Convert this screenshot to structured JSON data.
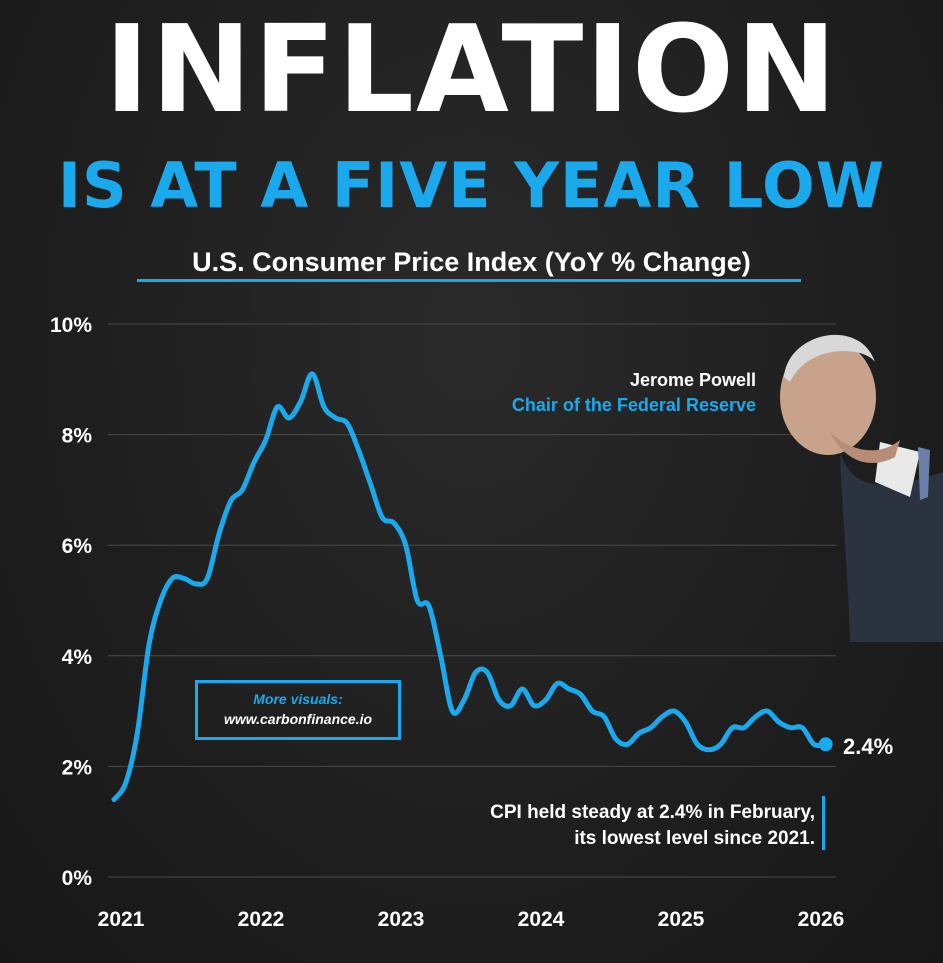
{
  "headline": {
    "line1": "INFLATION",
    "line2": "IS AT A FIVE YEAR LOW"
  },
  "speaker": {
    "name": "Jerome Powell",
    "role": "Chair of the Federal Reserve"
  },
  "promo": {
    "label": "More visuals:",
    "url": "www.carbonfinance.io"
  },
  "note": {
    "line1": "CPI held steady at 2.4% in February,",
    "line2": "its lowest level since 2021."
  },
  "colors": {
    "accent": "#1aa9ec",
    "background": "#1f1f1f",
    "text": "#ffffff",
    "grid": "#4a4a4a"
  },
  "chart_data": {
    "type": "line",
    "title": "U.S. Consumer Price Index (YoY % Change)",
    "xlabel": "",
    "ylabel": "",
    "x_ticks": [
      "2021",
      "2022",
      "2023",
      "2024",
      "2025",
      "2026"
    ],
    "y_ticks": [
      "0%",
      "2%",
      "4%",
      "6%",
      "8%",
      "10%"
    ],
    "ylim": [
      0,
      10
    ],
    "xlim": [
      "2021-01",
      "2026-02"
    ],
    "grid": true,
    "end_label": "2.4%",
    "series": [
      {
        "color": "#1aa9ec",
        "points": [
          {
            "x": "2021-01",
            "y": 1.4
          },
          {
            "x": "2021-02",
            "y": 1.7
          },
          {
            "x": "2021-03",
            "y": 2.6
          },
          {
            "x": "2021-04",
            "y": 4.2
          },
          {
            "x": "2021-05",
            "y": 5.0
          },
          {
            "x": "2021-06",
            "y": 5.4
          },
          {
            "x": "2021-07",
            "y": 5.4
          },
          {
            "x": "2021-08",
            "y": 5.3
          },
          {
            "x": "2021-09",
            "y": 5.4
          },
          {
            "x": "2021-10",
            "y": 6.2
          },
          {
            "x": "2021-11",
            "y": 6.8
          },
          {
            "x": "2021-12",
            "y": 7.0
          },
          {
            "x": "2022-01",
            "y": 7.5
          },
          {
            "x": "2022-02",
            "y": 7.9
          },
          {
            "x": "2022-03",
            "y": 8.5
          },
          {
            "x": "2022-04",
            "y": 8.3
          },
          {
            "x": "2022-05",
            "y": 8.6
          },
          {
            "x": "2022-06",
            "y": 9.1
          },
          {
            "x": "2022-07",
            "y": 8.5
          },
          {
            "x": "2022-08",
            "y": 8.3
          },
          {
            "x": "2022-09",
            "y": 8.2
          },
          {
            "x": "2022-10",
            "y": 7.7
          },
          {
            "x": "2022-11",
            "y": 7.1
          },
          {
            "x": "2022-12",
            "y": 6.5
          },
          {
            "x": "2023-01",
            "y": 6.4
          },
          {
            "x": "2023-02",
            "y": 6.0
          },
          {
            "x": "2023-03",
            "y": 5.0
          },
          {
            "x": "2023-04",
            "y": 4.9
          },
          {
            "x": "2023-05",
            "y": 4.0
          },
          {
            "x": "2023-06",
            "y": 3.0
          },
          {
            "x": "2023-07",
            "y": 3.2
          },
          {
            "x": "2023-08",
            "y": 3.7
          },
          {
            "x": "2023-09",
            "y": 3.7
          },
          {
            "x": "2023-10",
            "y": 3.2
          },
          {
            "x": "2023-11",
            "y": 3.1
          },
          {
            "x": "2023-12",
            "y": 3.4
          },
          {
            "x": "2024-01",
            "y": 3.1
          },
          {
            "x": "2024-02",
            "y": 3.2
          },
          {
            "x": "2024-03",
            "y": 3.5
          },
          {
            "x": "2024-04",
            "y": 3.4
          },
          {
            "x": "2024-05",
            "y": 3.3
          },
          {
            "x": "2024-06",
            "y": 3.0
          },
          {
            "x": "2024-07",
            "y": 2.9
          },
          {
            "x": "2024-08",
            "y": 2.5
          },
          {
            "x": "2024-09",
            "y": 2.4
          },
          {
            "x": "2024-10",
            "y": 2.6
          },
          {
            "x": "2024-11",
            "y": 2.7
          },
          {
            "x": "2024-12",
            "y": 2.9
          },
          {
            "x": "2025-01",
            "y": 3.0
          },
          {
            "x": "2025-02",
            "y": 2.8
          },
          {
            "x": "2025-03",
            "y": 2.4
          },
          {
            "x": "2025-04",
            "y": 2.3
          },
          {
            "x": "2025-05",
            "y": 2.4
          },
          {
            "x": "2025-06",
            "y": 2.7
          },
          {
            "x": "2025-07",
            "y": 2.7
          },
          {
            "x": "2025-08",
            "y": 2.9
          },
          {
            "x": "2025-09",
            "y": 3.0
          },
          {
            "x": "2025-10",
            "y": 2.8
          },
          {
            "x": "2025-11",
            "y": 2.7
          },
          {
            "x": "2025-12",
            "y": 2.7
          },
          {
            "x": "2026-01",
            "y": 2.4
          },
          {
            "x": "2026-02",
            "y": 2.4
          }
        ]
      }
    ]
  }
}
